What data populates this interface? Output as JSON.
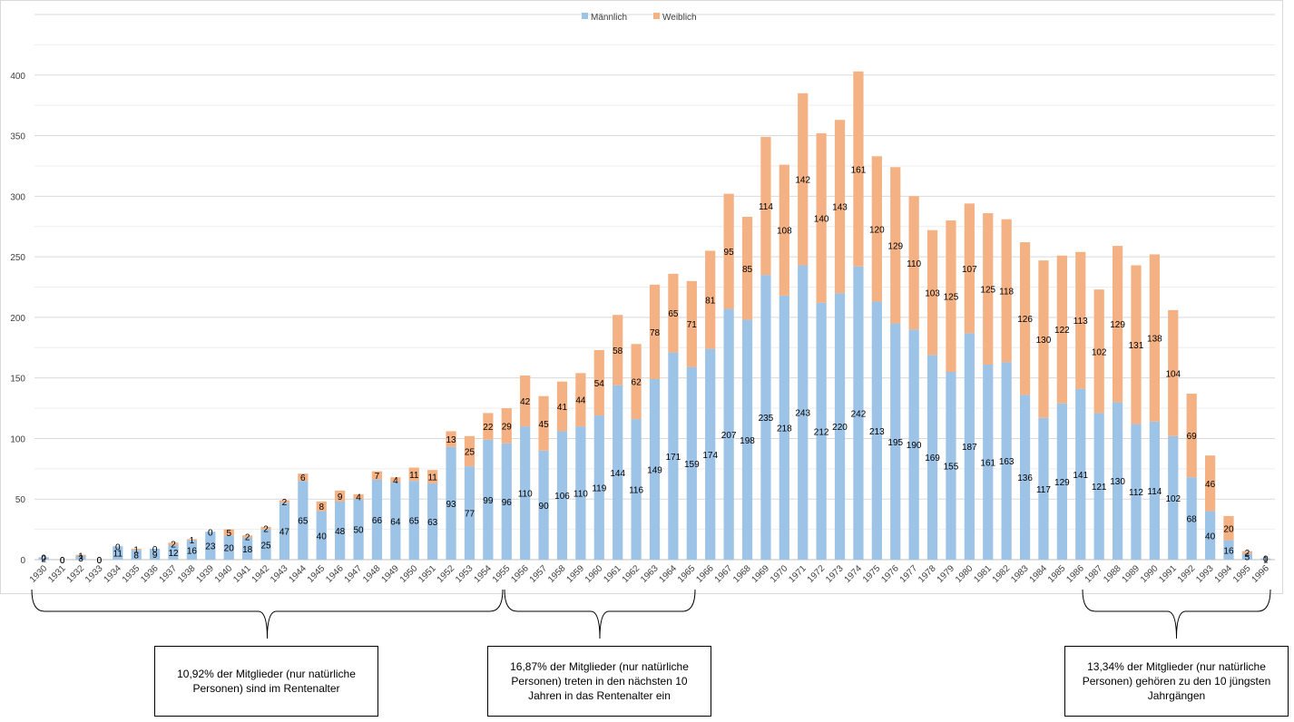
{
  "chart_data": {
    "type": "bar",
    "stacked": true,
    "legend_position": "top-center",
    "categories": [
      "1930",
      "1931",
      "1932",
      "1933",
      "1934",
      "1935",
      "1936",
      "1937",
      "1938",
      "1939",
      "1940",
      "1941",
      "1942",
      "1943",
      "1944",
      "1945",
      "1946",
      "1947",
      "1948",
      "1949",
      "1950",
      "1951",
      "1952",
      "1953",
      "1954",
      "1955",
      "1956",
      "1957",
      "1958",
      "1959",
      "1960",
      "1961",
      "1962",
      "1963",
      "1964",
      "1965",
      "1966",
      "1967",
      "1968",
      "1969",
      "1970",
      "1971",
      "1972",
      "1973",
      "1974",
      "1975",
      "1976",
      "1977",
      "1978",
      "1979",
      "1980",
      "1981",
      "1982",
      "1983",
      "1984",
      "1985",
      "1986",
      "1987",
      "1988",
      "1989",
      "1990",
      "1991",
      "1992",
      "1993",
      "1994",
      "1995",
      "1996"
    ],
    "series": [
      {
        "name": "Männlich",
        "color": "#9dc3e6",
        "values": [
          2,
          0,
          3,
          0,
          11,
          8,
          9,
          12,
          16,
          23,
          20,
          18,
          25,
          47,
          65,
          40,
          48,
          50,
          66,
          64,
          65,
          63,
          93,
          77,
          99,
          96,
          110,
          90,
          106,
          110,
          119,
          144,
          116,
          149,
          171,
          159,
          174,
          207,
          198,
          235,
          218,
          243,
          212,
          220,
          242,
          213,
          195,
          190,
          169,
          155,
          187,
          161,
          163,
          136,
          117,
          129,
          141,
          121,
          130,
          112,
          114,
          102,
          68,
          40,
          16,
          5,
          1
        ]
      },
      {
        "name": "Weiblich",
        "color": "#f4b183",
        "values": [
          0,
          0,
          1,
          0,
          0,
          1,
          0,
          2,
          1,
          0,
          5,
          2,
          2,
          2,
          6,
          8,
          9,
          4,
          7,
          4,
          11,
          11,
          13,
          25,
          22,
          29,
          42,
          45,
          41,
          44,
          54,
          58,
          62,
          78,
          65,
          71,
          81,
          95,
          85,
          114,
          108,
          142,
          140,
          143,
          161,
          120,
          129,
          110,
          103,
          125,
          107,
          125,
          118,
          126,
          130,
          122,
          113,
          102,
          129,
          131,
          138,
          104,
          69,
          46,
          20,
          2,
          0
        ]
      }
    ],
    "hidden_labels": [],
    "ylim": [
      0,
      450
    ],
    "yticks": [
      0,
      50,
      100,
      150,
      200,
      250,
      300,
      350,
      400
    ],
    "grid": true
  },
  "annotations": [
    {
      "text": "10,92% der Mitglieder (nur natürliche Personen) sind im Rentenalter"
    },
    {
      "text": "16,87% der Mitglieder (nur natürliche Personen) treten in den nächsten 10 Jahren in das Rentenalter ein"
    },
    {
      "text": "13,34% der Mitglieder (nur natürliche Personen) gehören zu den 10 jüngsten Jahrgängen"
    }
  ]
}
